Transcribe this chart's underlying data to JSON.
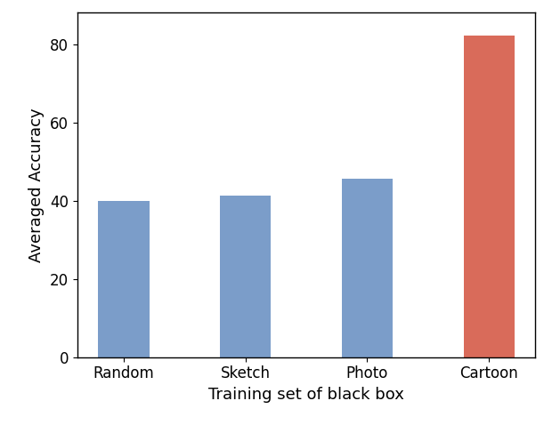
{
  "categories": [
    "Random",
    "Sketch",
    "Photo",
    "Cartoon"
  ],
  "values": [
    39.8,
    41.3,
    45.5,
    82.2
  ],
  "bar_colors": [
    "#7B9DC9",
    "#7B9DC9",
    "#7B9DC9",
    "#D96B5A"
  ],
  "xlabel": "Training set of black box",
  "ylabel": "Averaged Accuracy",
  "ylim": [
    0,
    88
  ],
  "yticks": [
    0,
    20,
    40,
    60,
    80
  ],
  "xlabel_fontsize": 13,
  "ylabel_fontsize": 13,
  "tick_fontsize": 12,
  "bar_width": 0.42,
  "background_color": "#ffffff"
}
